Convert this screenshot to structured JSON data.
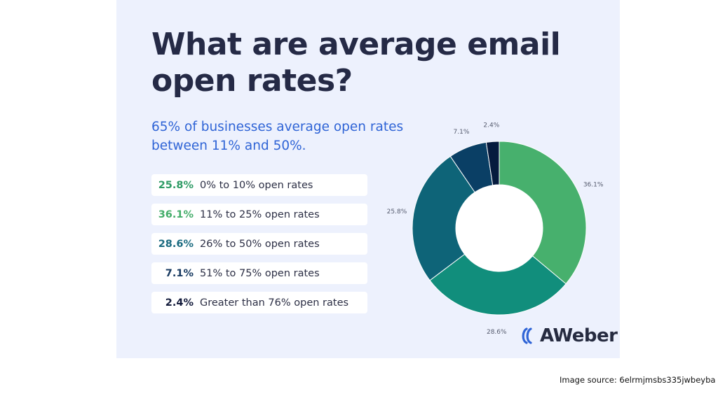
{
  "infographic": {
    "title": "What are average email open rates?",
    "subtitle": "65% of businesses average open rates between 11% and 50%.",
    "logo_text": "AWeber",
    "source_text": "Image source: 6elrmjmsbs335jwbeyba"
  },
  "colors": {
    "background": "#edf1fd",
    "title": "#252a46",
    "subtitle": "#2f64d6"
  },
  "chart_data": {
    "type": "pie",
    "donut": true,
    "title": "",
    "slices": [
      {
        "label": "11% to 25% open rates",
        "value": 36.1,
        "value_label": "36.1%",
        "color": "#47b06d"
      },
      {
        "label": "26% to 50% open rates",
        "value": 28.6,
        "value_label": "28.6%",
        "color": "#118e7c"
      },
      {
        "label": "0% to 10% open rates",
        "value": 25.8,
        "value_label": "25.8%",
        "color": "#0e6478"
      },
      {
        "label": "51% to 75% open rates",
        "value": 7.1,
        "value_label": "7.1%",
        "color": "#0a3f65"
      },
      {
        "label": "Greater than 76% open rates",
        "value": 2.4,
        "value_label": "2.4%",
        "color": "#061b3e"
      }
    ],
    "legend": [
      {
        "value_label": "25.8%",
        "label": "0% to 10% open rates",
        "color": "#2e9b65"
      },
      {
        "value_label": "36.1%",
        "label": "11% to 25% open rates",
        "color": "#44ad6a"
      },
      {
        "value_label": "28.6%",
        "label": "26% to 50% open rates",
        "color": "#1b6b80"
      },
      {
        "value_label": "7.1%",
        "label": "51% to 75% open rates",
        "color": "#183a61"
      },
      {
        "value_label": "2.4%",
        "label": "Greater than 76% open rates",
        "color": "#141c3c"
      }
    ],
    "legend_placement": "left"
  }
}
